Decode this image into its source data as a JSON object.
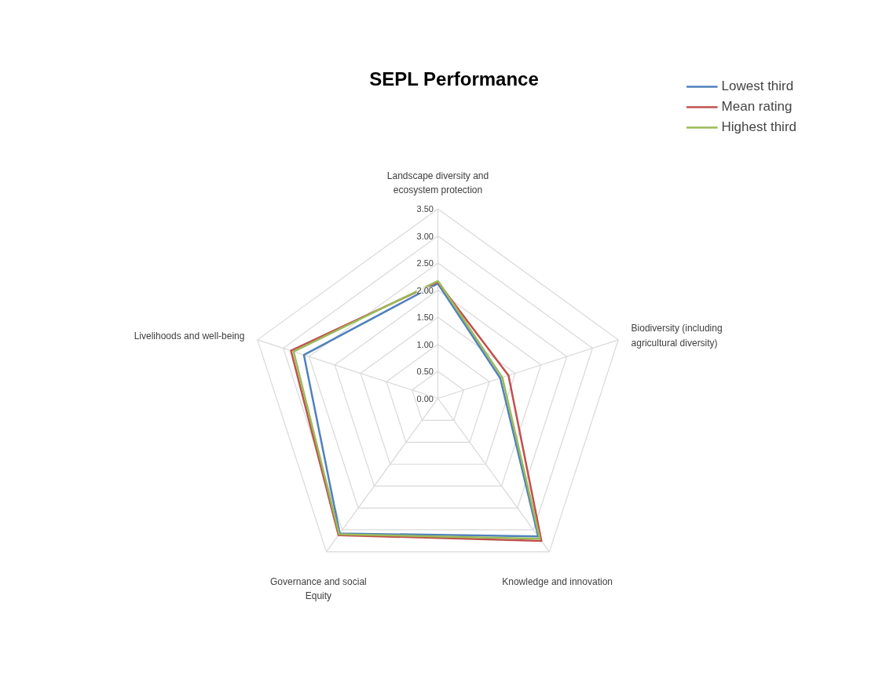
{
  "chart_data": {
    "type": "radar",
    "title": "SEPL Performance",
    "categories": [
      "Landscape diversity and ecosystem protection",
      "Biodiversity (including agricultural diversity)",
      "Knowledge and innovation",
      "Governance and social Equity",
      "Livelihoods and well-being"
    ],
    "series": [
      {
        "name": "Lowest third",
        "color": "#4f81bd",
        "values": [
          2.12,
          1.21,
          3.15,
          3.08,
          2.6
        ]
      },
      {
        "name": "Mean rating",
        "color": "#c0504d",
        "values": [
          2.15,
          1.37,
          3.25,
          3.12,
          2.85
        ]
      },
      {
        "name": "Highest third",
        "color": "#9bbb59",
        "values": [
          2.17,
          1.25,
          3.2,
          3.1,
          2.8
        ]
      }
    ],
    "ylim": [
      0,
      3.5
    ],
    "yticks": [
      {
        "value": 0,
        "label": "0.00"
      },
      {
        "value": 0.5,
        "label": "0.50"
      },
      {
        "value": 1,
        "label": "1.00"
      },
      {
        "value": 1.5,
        "label": "1.50"
      },
      {
        "value": 2,
        "label": "2.00"
      },
      {
        "value": 2.5,
        "label": "2.50"
      },
      {
        "value": 3,
        "label": "3.00"
      },
      {
        "value": 3.5,
        "label": "3.50"
      }
    ],
    "grid": true,
    "legend": "top right",
    "marker": "none",
    "line_style": "solid"
  }
}
